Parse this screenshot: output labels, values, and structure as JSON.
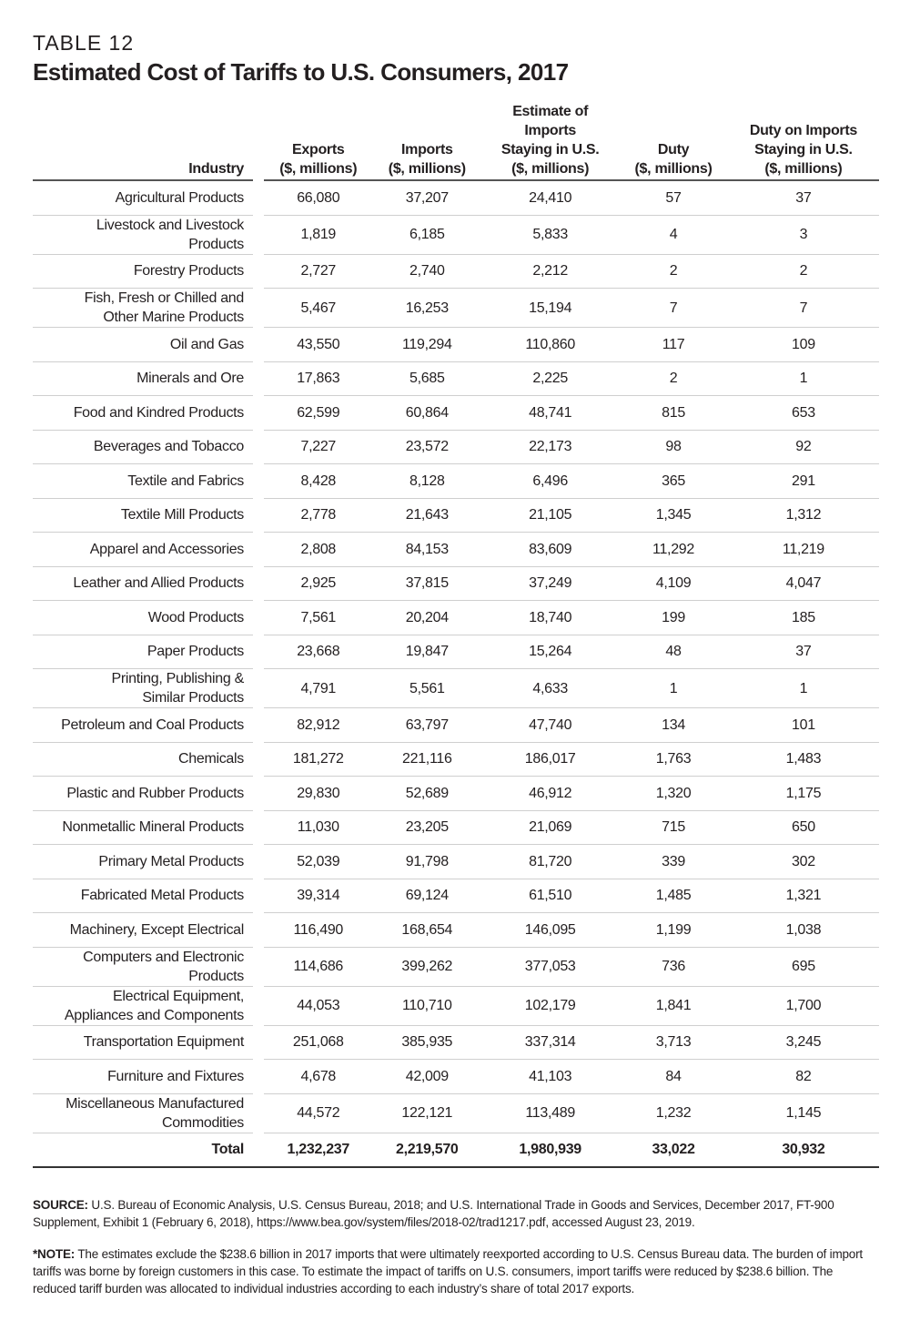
{
  "kicker": "TABLE 12",
  "title": "Estimated Cost of Tariffs to U.S. Consumers, 2017",
  "headers": {
    "industry": "Industry",
    "exports": [
      "Exports",
      "($, millions)"
    ],
    "imports": [
      "Imports",
      "($, millions)"
    ],
    "staying": [
      "Estimate of",
      "Imports",
      "Staying in U.S.",
      "($, millions)"
    ],
    "duty": [
      "Duty",
      "($, millions)"
    ],
    "duty_staying": [
      "Duty on Imports",
      "Staying in U.S.",
      "($, millions)"
    ]
  },
  "rows": [
    [
      "Agricultural Products",
      "66,080",
      "37,207",
      "24,410",
      "57",
      "37"
    ],
    [
      "Livestock and Livestock Products",
      "1,819",
      "6,185",
      "5,833",
      "4",
      "3"
    ],
    [
      "Forestry Products",
      "2,727",
      "2,740",
      "2,212",
      "2",
      "2"
    ],
    [
      "Fish, Fresh or Chilled and Other Marine Products",
      "5,467",
      "16,253",
      "15,194",
      "7",
      "7"
    ],
    [
      "Oil and Gas",
      "43,550",
      "119,294",
      "110,860",
      "117",
      "109"
    ],
    [
      "Minerals and Ore",
      "17,863",
      "5,685",
      "2,225",
      "2",
      "1"
    ],
    [
      "Food and Kindred Products",
      "62,599",
      "60,864",
      "48,741",
      "815",
      "653"
    ],
    [
      "Beverages and Tobacco",
      "7,227",
      "23,572",
      "22,173",
      "98",
      "92"
    ],
    [
      "Textile and Fabrics",
      "8,428",
      "8,128",
      "6,496",
      "365",
      "291"
    ],
    [
      "Textile Mill Products",
      "2,778",
      "21,643",
      "21,105",
      "1,345",
      "1,312"
    ],
    [
      "Apparel and Accessories",
      "2,808",
      "84,153",
      "83,609",
      "11,292",
      "11,219"
    ],
    [
      "Leather and Allied Products",
      "2,925",
      "37,815",
      "37,249",
      "4,109",
      "4,047"
    ],
    [
      "Wood Products",
      "7,561",
      "20,204",
      "18,740",
      "199",
      "185"
    ],
    [
      "Paper Products",
      "23,668",
      "19,847",
      "15,264",
      "48",
      "37"
    ],
    [
      "Printing, Publishing & Similar Products",
      "4,791",
      "5,561",
      "4,633",
      "1",
      "1"
    ],
    [
      "Petroleum and Coal Products",
      "82,912",
      "63,797",
      "47,740",
      "134",
      "101"
    ],
    [
      "Chemicals",
      "181,272",
      "221,116",
      "186,017",
      "1,763",
      "1,483"
    ],
    [
      "Plastic and Rubber Products",
      "29,830",
      "52,689",
      "46,912",
      "1,320",
      "1,175"
    ],
    [
      "Nonmetallic Mineral Products",
      "11,030",
      "23,205",
      "21,069",
      "715",
      "650"
    ],
    [
      "Primary Metal Products",
      "52,039",
      "91,798",
      "81,720",
      "339",
      "302"
    ],
    [
      "Fabricated Metal Products",
      "39,314",
      "69,124",
      "61,510",
      "1,485",
      "1,321"
    ],
    [
      "Machinery, Except Electrical",
      "116,490",
      "168,654",
      "146,095",
      "1,199",
      "1,038"
    ],
    [
      "Computers and Electronic Products",
      "114,686",
      "399,262",
      "377,053",
      "736",
      "695"
    ],
    [
      "Electrical Equipment, Appliances and Components",
      "44,053",
      "110,710",
      "102,179",
      "1,841",
      "1,700"
    ],
    [
      "Transportation Equipment",
      "251,068",
      "385,935",
      "337,314",
      "3,713",
      "3,245"
    ],
    [
      "Furniture and Fixtures",
      "4,678",
      "42,009",
      "41,103",
      "84",
      "82"
    ],
    [
      "Miscellaneous Manufactured Commodities",
      "44,572",
      "122,121",
      "113,489",
      "1,232",
      "1,145"
    ]
  ],
  "total": [
    "Total",
    "1,232,237",
    "2,219,570",
    "1,980,939",
    "33,022",
    "30,932"
  ],
  "source": {
    "label": "SOURCE:",
    "text": " U.S. Bureau of Economic Analysis, U.S. Census Bureau, 2018; and U.S. International Trade in Goods and Services, December 2017, FT-900 Supplement, Exhibit 1 (February 6, 2018), https://www.bea.gov/system/files/2018-02/trad1217.pdf, accessed August 23, 2019."
  },
  "note": {
    "label": "*NOTE:",
    "text": " The estimates exclude the $238.6 billion in 2017 imports that were ultimately reexported according to U.S. Census Bureau data. The burden of import tariffs was borne by foreign customers in this case. To estimate the impact of tariffs on U.S. consumers, import tariffs were reduced by $238.6 billion. The reduced tariff burden was allocated to individual industries according to each industry’s share of total 2017 exports."
  }
}
